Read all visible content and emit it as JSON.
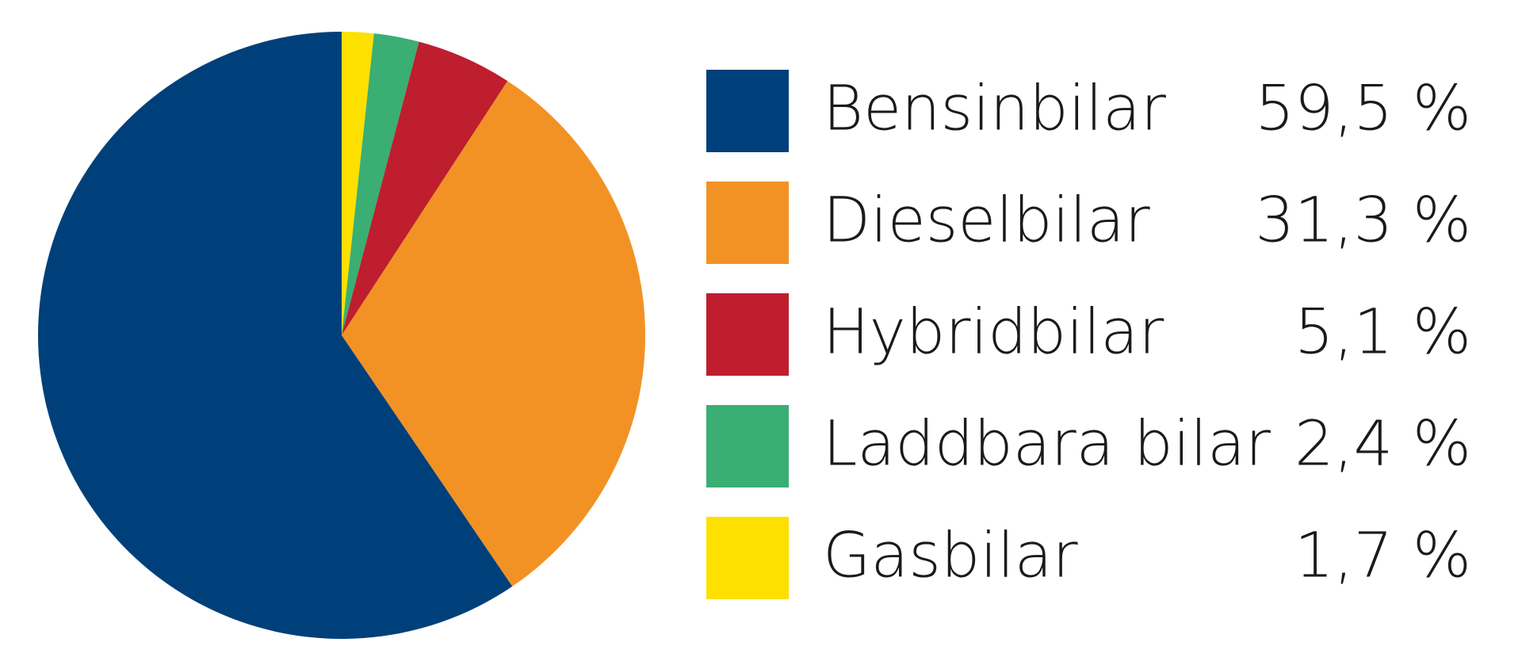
{
  "chart_data": {
    "type": "pie",
    "categories": [
      "Bensinbilar",
      "Dieselbilar",
      "Hybridbilar",
      "Laddbara bilar",
      "Gasbilar"
    ],
    "values": [
      59.5,
      31.3,
      5.1,
      2.4,
      1.7
    ],
    "value_labels": [
      "59,5 %",
      "31,3 %",
      "5,1 %",
      "2,4 %",
      "1,7 %"
    ],
    "colors": [
      "#00407a",
      "#f29224",
      "#be1e2d",
      "#3aae73",
      "#fee000"
    ]
  }
}
